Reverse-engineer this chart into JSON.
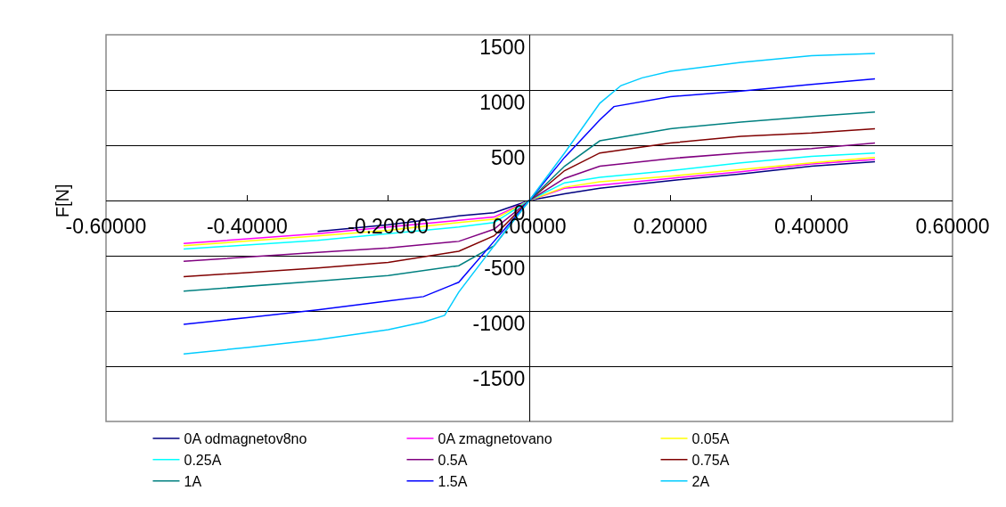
{
  "chart_data": {
    "type": "line",
    "ylabel": "F[N]",
    "xlim": [
      -0.6,
      0.6
    ],
    "ylim": [
      -2000,
      1500
    ],
    "xticks": [
      {
        "value": -0.6,
        "label": "-0.60000"
      },
      {
        "value": -0.4,
        "label": "-0.40000"
      },
      {
        "value": -0.2,
        "label": "-0.20000"
      },
      {
        "value": 0,
        "label": "0.00000"
      },
      {
        "value": 0.2,
        "label": "0.20000"
      },
      {
        "value": 0.4,
        "label": "0.40000"
      },
      {
        "value": 0.6,
        "label": "0.60000"
      }
    ],
    "yticks": [
      -1500,
      -1000,
      -500,
      0,
      500,
      1000,
      1500
    ],
    "grid": "y",
    "legend": "bottom",
    "marker": "none",
    "line_style": "solid",
    "series": [
      {
        "name": "0A odmagnetov8no",
        "color": "#000080",
        "x": [
          -0.3,
          -0.2,
          -0.1,
          -0.05,
          0,
          0.05,
          0.1,
          0.2,
          0.3,
          0.4,
          0.49
        ],
        "values": [
          -280,
          -220,
          -140,
          -110,
          0,
          60,
          110,
          180,
          240,
          310,
          350
        ]
      },
      {
        "name": "0A zmagnetovano",
        "color": "#ff00ff",
        "x": [
          -0.49,
          -0.3,
          -0.2,
          -0.1,
          -0.05,
          0,
          0.05,
          0.1,
          0.2,
          0.3,
          0.4,
          0.49
        ],
        "values": [
          -390,
          -300,
          -240,
          -180,
          -150,
          0,
          110,
          140,
          200,
          260,
          330,
          370
        ]
      },
      {
        "name": "0.05A",
        "color": "#ffff00",
        "x": [
          -0.49,
          -0.3,
          -0.2,
          -0.1,
          -0.05,
          0,
          0.05,
          0.1,
          0.2,
          0.3,
          0.4,
          0.49
        ],
        "values": [
          -410,
          -320,
          -270,
          -200,
          -170,
          0,
          120,
          170,
          220,
          280,
          340,
          390
        ]
      },
      {
        "name": "0.25A",
        "color": "#00ffff",
        "x": [
          -0.49,
          -0.3,
          -0.2,
          -0.1,
          -0.05,
          0,
          0.05,
          0.1,
          0.2,
          0.3,
          0.4,
          0.49
        ],
        "values": [
          -440,
          -360,
          -300,
          -240,
          -200,
          0,
          160,
          210,
          270,
          340,
          400,
          430
        ]
      },
      {
        "name": "0.5A",
        "color": "#800080",
        "x": [
          -0.49,
          -0.3,
          -0.2,
          -0.1,
          -0.05,
          0,
          0.05,
          0.1,
          0.2,
          0.3,
          0.4,
          0.49
        ],
        "values": [
          -550,
          -470,
          -430,
          -370,
          -260,
          0,
          200,
          310,
          380,
          430,
          470,
          520
        ]
      },
      {
        "name": "0.75A",
        "color": "#800000",
        "x": [
          -0.49,
          -0.3,
          -0.2,
          -0.1,
          -0.05,
          0,
          0.05,
          0.1,
          0.2,
          0.3,
          0.4,
          0.49
        ],
        "values": [
          -690,
          -610,
          -560,
          -460,
          -320,
          0,
          270,
          430,
          520,
          580,
          610,
          650
        ]
      },
      {
        "name": "1A",
        "color": "#008080",
        "x": [
          -0.49,
          -0.3,
          -0.2,
          -0.1,
          -0.05,
          0,
          0.05,
          0.1,
          0.2,
          0.3,
          0.4,
          0.49
        ],
        "values": [
          -820,
          -730,
          -680,
          -590,
          -410,
          0,
          310,
          540,
          650,
          710,
          760,
          800
        ]
      },
      {
        "name": "1.5A",
        "color": "#0000ff",
        "x": [
          -0.49,
          -0.4,
          -0.3,
          -0.2,
          -0.15,
          -0.1,
          -0.05,
          0,
          0.05,
          0.1,
          0.12,
          0.2,
          0.3,
          0.4,
          0.49
        ],
        "values": [
          -1120,
          -1060,
          -990,
          -910,
          -870,
          -740,
          -370,
          0,
          390,
          730,
          850,
          940,
          990,
          1050,
          1100
        ]
      },
      {
        "name": "2A",
        "color": "#00ccff",
        "x": [
          -0.49,
          -0.4,
          -0.3,
          -0.2,
          -0.15,
          -0.12,
          -0.1,
          -0.05,
          0,
          0.05,
          0.1,
          0.13,
          0.16,
          0.2,
          0.3,
          0.4,
          0.49
        ],
        "values": [
          -1390,
          -1330,
          -1260,
          -1170,
          -1100,
          -1040,
          -830,
          -410,
          0,
          430,
          880,
          1040,
          1110,
          1170,
          1250,
          1310,
          1330
        ]
      }
    ]
  }
}
